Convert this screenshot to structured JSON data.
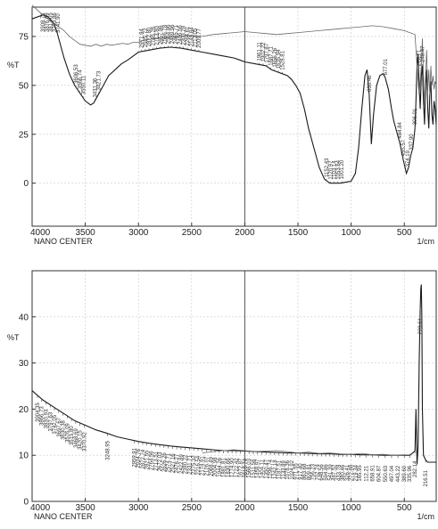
{
  "chart_data": [
    {
      "type": "line",
      "x_unit": "1/cm",
      "ylabel": "%T",
      "footer_label": "NANO CENTER",
      "xlim": [
        4000,
        200
      ],
      "ylim": [
        -22,
        90
      ],
      "x_ticks": [
        4000,
        3500,
        3000,
        2500,
        2000,
        1500,
        1000,
        500
      ],
      "y_ticks": [
        0,
        25,
        50,
        75
      ],
      "grid": true,
      "series": [
        {
          "x": [
            4000,
            3900,
            3850,
            3800,
            3770,
            3740,
            3700,
            3650,
            3600,
            3550,
            3500,
            3450,
            3420,
            3380,
            3330,
            3280,
            3220,
            3160,
            3100,
            3050,
            3000,
            2900,
            2800,
            2700,
            2600,
            2500,
            2400,
            2300,
            2200,
            2100,
            2050,
            2000,
            1900,
            1800,
            1750,
            1700,
            1650,
            1600,
            1560,
            1520,
            1480,
            1440,
            1400,
            1350,
            1300,
            1250,
            1200,
            1150,
            1100,
            1050,
            1000,
            960,
            930,
            900,
            870,
            850,
            830,
            810,
            790,
            760,
            730,
            700,
            680,
            650,
            620,
            600,
            570,
            540,
            510,
            480,
            460,
            440,
            420,
            400,
            390,
            380,
            370,
            360,
            350,
            340,
            330,
            320,
            310,
            300,
            290,
            280,
            270,
            260,
            250,
            240,
            230,
            220,
            210,
            200
          ],
          "y": [
            84,
            86,
            85,
            82,
            78,
            72,
            64,
            56,
            50,
            46,
            42,
            40,
            41,
            45,
            50,
            55,
            58,
            61,
            63,
            65,
            67,
            68,
            69,
            69.5,
            69,
            68,
            67,
            66,
            65,
            64,
            63,
            62,
            61,
            60,
            58,
            57,
            56,
            55,
            53,
            50,
            46,
            38,
            28,
            18,
            8,
            2,
            0,
            0,
            0,
            0.5,
            1,
            5,
            18,
            38,
            55,
            58,
            45,
            20,
            35,
            50,
            55,
            56,
            54,
            48,
            38,
            32,
            26,
            20,
            12,
            5,
            8,
            14,
            18,
            28,
            42,
            60,
            66,
            50,
            38,
            55,
            60,
            42,
            30,
            50,
            58,
            38,
            28,
            45,
            52,
            35,
            30,
            42,
            38,
            30
          ]
        },
        {
          "x": [
            4000,
            3900,
            3800,
            3700,
            3650,
            3600,
            3550,
            3500,
            3450,
            3400,
            3350,
            3300,
            3250,
            3200,
            3150,
            3100,
            3050,
            3000,
            2950,
            2900,
            2800,
            2700,
            2600,
            2500,
            2400,
            2300,
            2200,
            2100,
            2000,
            1900,
            1800,
            1700,
            1600,
            1500,
            1400,
            1300,
            1200,
            1100,
            1000,
            900,
            800,
            700,
            600,
            500,
            450,
            400,
            380,
            360,
            340,
            330,
            320,
            310,
            300,
            290,
            280,
            270,
            260,
            250,
            240,
            230,
            220,
            210,
            200
          ],
          "y": [
            91,
            86,
            82,
            78,
            75,
            73,
            71,
            70.5,
            70,
            71,
            70,
            71,
            70.5,
            71,
            71.5,
            71,
            72,
            72,
            73,
            73.5,
            74,
            74.5,
            75,
            75.5,
            75,
            76,
            76.5,
            77,
            77.5,
            77,
            76.5,
            76,
            76.5,
            77,
            77.5,
            78,
            78.5,
            79,
            79.5,
            80,
            80.5,
            80,
            79,
            78,
            77,
            76,
            60,
            45,
            60,
            74,
            55,
            40,
            55,
            68,
            47,
            58,
            45,
            60,
            50,
            55,
            48,
            52,
            50
          ]
        }
      ],
      "peak_labels": [
        {
          "x": 3898,
          "text": "3908.71"
        },
        {
          "x": 3862,
          "text": "3876.69"
        },
        {
          "x": 3826,
          "text": "3812.05"
        },
        {
          "x": 3790,
          "text": "3793.86"
        },
        {
          "x": 3755,
          "text": "3741.90"
        },
        {
          "x": 3588,
          "text": "3606.53"
        },
        {
          "x": 3553,
          "text": "3566.74"
        },
        {
          "x": 3518,
          "text": "3550.11"
        },
        {
          "x": 3410,
          "text": "3431.36"
        },
        {
          "x": 3374,
          "text": "3421.73"
        },
        {
          "x": 2972,
          "text": "2971.94"
        },
        {
          "x": 2936,
          "text": "2925.72"
        },
        {
          "x": 2900,
          "text": "2872.80"
        },
        {
          "x": 2864,
          "text": "2746.26"
        },
        {
          "x": 2828,
          "text": "2713.80"
        },
        {
          "x": 2792,
          "text": "2657.86"
        },
        {
          "x": 2756,
          "text": "2596.78"
        },
        {
          "x": 2720,
          "text": "2564.86"
        },
        {
          "x": 2684,
          "text": "2489.96"
        },
        {
          "x": 2648,
          "text": "2465.71"
        },
        {
          "x": 2612,
          "text": "2406.56"
        },
        {
          "x": 2576,
          "text": "2303.28"
        },
        {
          "x": 2540,
          "text": "2264.61"
        },
        {
          "x": 2504,
          "text": "2149.84"
        },
        {
          "x": 2468,
          "text": "2113.05"
        },
        {
          "x": 2432,
          "text": "2009.77"
        },
        {
          "x": 1864,
          "text": "1961.11"
        },
        {
          "x": 1828,
          "text": "1902.22"
        },
        {
          "x": 1792,
          "text": "1797.87"
        },
        {
          "x": 1756,
          "text": "1687.71"
        },
        {
          "x": 1720,
          "text": "1656.26"
        },
        {
          "x": 1684,
          "text": "1635.94"
        },
        {
          "x": 1648,
          "text": "1528.81"
        },
        {
          "x": 1232,
          "text": "1152.43"
        },
        {
          "x": 1196,
          "text": "1120.97"
        },
        {
          "x": 1160,
          "text": "1103.14"
        },
        {
          "x": 1124,
          "text": "1053.64"
        },
        {
          "x": 1088,
          "text": "1001.20"
        },
        {
          "x": 830,
          "text": "830.46"
        },
        {
          "x": 677,
          "text": "677.01"
        },
        {
          "x": 545,
          "text": "484.84"
        },
        {
          "x": 510,
          "text": "455.57"
        },
        {
          "x": 470,
          "text": "374.19"
        },
        {
          "x": 435,
          "text": "337.90"
        },
        {
          "x": 400,
          "text": "306.01"
        },
        {
          "x": 365,
          "text": "276.71"
        },
        {
          "x": 330,
          "text": "248.47"
        }
      ]
    },
    {
      "type": "line",
      "x_unit": "1/cm",
      "ylabel": "%T",
      "footer_label": "NANO CENTER",
      "xlim": [
        4000,
        200
      ],
      "ylim": [
        0,
        50
      ],
      "x_ticks": [
        4000,
        3500,
        3000,
        2500,
        2000,
        1500,
        1000,
        500
      ],
      "y_ticks": [
        0,
        10,
        20,
        30,
        40
      ],
      "grid": true,
      "series": [
        {
          "x": [
            4000,
            3900,
            3800,
            3700,
            3600,
            3500,
            3400,
            3300,
            3200,
            3100,
            3000,
            2900,
            2800,
            2700,
            2600,
            2500,
            2400,
            2300,
            2200,
            2100,
            2000,
            1900,
            1800,
            1700,
            1600,
            1500,
            1400,
            1300,
            1200,
            1100,
            1000,
            900,
            800,
            700,
            600,
            500,
            450,
            420,
            400,
            390,
            380,
            370,
            360,
            350,
            345,
            340,
            335,
            330,
            320,
            300,
            280,
            260,
            240,
            220,
            200
          ],
          "y": [
            24,
            22,
            20.5,
            19,
            17.5,
            16.5,
            15.5,
            14.8,
            14,
            13.5,
            13,
            12.6,
            12.3,
            12,
            11.8,
            11.6,
            11.4,
            11.2,
            11,
            11,
            10.9,
            10.8,
            10.7,
            10.6,
            10.5,
            10.5,
            10.4,
            10.3,
            10.3,
            10.2,
            10.2,
            10.1,
            10.1,
            10,
            10,
            10,
            10,
            10.5,
            11,
            20,
            8,
            12,
            30,
            42,
            46,
            47,
            40,
            20,
            10,
            9,
            8.5,
            8.5,
            8.5,
            8.5,
            8.5
          ]
        },
        {
          "x": [
            2400,
            2300,
            2200,
            2100,
            2000,
            1900,
            1800,
            1700,
            1600,
            1500,
            1400,
            1300,
            1200,
            1100,
            1000,
            900,
            800,
            700,
            600,
            500
          ],
          "y": [
            10.5,
            10.8,
            11,
            11.2,
            11,
            10.8,
            10.9,
            11,
            10.8,
            10.5,
            10.7,
            10.4,
            10.5,
            10.3,
            10.2,
            10.4,
            10.1,
            10.2,
            10,
            10.1
          ]
        }
      ],
      "peak_labels": [
        {
          "x": 3950,
          "text": "3904.35"
        },
        {
          "x": 3910,
          "text": "3866.73"
        },
        {
          "x": 3870,
          "text": "3830.93"
        },
        {
          "x": 3830,
          "text": "3797.63"
        },
        {
          "x": 3790,
          "text": "3742.05"
        },
        {
          "x": 3750,
          "text": "3697.67"
        },
        {
          "x": 3710,
          "text": "3630.38"
        },
        {
          "x": 3670,
          "text": "3576.09"
        },
        {
          "x": 3630,
          "text": "3515.80"
        },
        {
          "x": 3590,
          "text": "3468.69"
        },
        {
          "x": 3550,
          "text": "3420.15"
        },
        {
          "x": 3510,
          "text": "3370.92"
        },
        {
          "x": 3290,
          "text": "3248.95"
        },
        {
          "x": 3040,
          "text": "2959.91"
        },
        {
          "x": 3000,
          "text": "2924.76"
        },
        {
          "x": 2960,
          "text": "2872.74"
        },
        {
          "x": 2920,
          "text": "2821.55"
        },
        {
          "x": 2880,
          "text": "2764.56"
        },
        {
          "x": 2840,
          "text": "2713.51"
        },
        {
          "x": 2800,
          "text": "2672.03"
        },
        {
          "x": 2760,
          "text": "2626.26"
        },
        {
          "x": 2720,
          "text": "2574.71"
        },
        {
          "x": 2680,
          "text": "2527.16"
        },
        {
          "x": 2640,
          "text": "2478.27"
        },
        {
          "x": 2600,
          "text": "2422.89"
        },
        {
          "x": 2560,
          "text": "2380.22"
        },
        {
          "x": 2520,
          "text": "2331.71"
        },
        {
          "x": 2480,
          "text": "2275.32"
        },
        {
          "x": 2440,
          "text": "2216.54"
        },
        {
          "x": 2400,
          "text": "2174.91"
        },
        {
          "x": 2360,
          "text": "2126.07"
        },
        {
          "x": 2320,
          "text": "2068.49"
        },
        {
          "x": 2280,
          "text": "2004.98"
        },
        {
          "x": 2240,
          "text": "1944.26"
        },
        {
          "x": 2200,
          "text": "1881.81"
        },
        {
          "x": 2160,
          "text": "1830.66"
        },
        {
          "x": 2120,
          "text": "1774.90"
        },
        {
          "x": 2080,
          "text": "1722.42"
        },
        {
          "x": 2040,
          "text": "1672.87"
        },
        {
          "x": 2000,
          "text": "1618.74"
        },
        {
          "x": 1960,
          "text": "1566.03"
        },
        {
          "x": 1920,
          "text": "1511.58"
        },
        {
          "x": 1880,
          "text": "1458.97"
        },
        {
          "x": 1840,
          "text": "1404.11"
        },
        {
          "x": 1800,
          "text": "1350.47"
        },
        {
          "x": 1760,
          "text": "1296.74"
        },
        {
          "x": 1720,
          "text": "1242.18"
        },
        {
          "x": 1680,
          "text": "1187.51"
        },
        {
          "x": 1640,
          "text": "1133.89"
        },
        {
          "x": 1600,
          "text": "1078.36"
        },
        {
          "x": 1560,
          "text": "1024.92"
        },
        {
          "x": 1520,
          "text": "971.55"
        },
        {
          "x": 1480,
          "text": "917.40"
        },
        {
          "x": 1440,
          "text": "863.68"
        },
        {
          "x": 1400,
          "text": "809.81"
        },
        {
          "x": 1360,
          "text": "756.23"
        },
        {
          "x": 1320,
          "text": "702.74"
        },
        {
          "x": 1280,
          "text": "648.56"
        },
        {
          "x": 1240,
          "text": "594.86"
        },
        {
          "x": 1200,
          "text": "541.39"
        },
        {
          "x": 1160,
          "text": "487.52"
        },
        {
          "x": 1120,
          "text": "433.78"
        },
        {
          "x": 1080,
          "text": "380.46"
        },
        {
          "x": 1040,
          "text": "326.41"
        },
        {
          "x": 1000,
          "text": "272.88"
        },
        {
          "x": 960,
          "text": "219.34"
        },
        {
          "x": 920,
          "text": "165.95"
        },
        {
          "x": 860,
          "text": "112.21"
        },
        {
          "x": 800,
          "text": "658.91"
        },
        {
          "x": 740,
          "text": "604.87"
        },
        {
          "x": 680,
          "text": "550.63"
        },
        {
          "x": 620,
          "text": "497.04"
        },
        {
          "x": 560,
          "text": "443.22"
        },
        {
          "x": 500,
          "text": "389.60"
        },
        {
          "x": 450,
          "text": "335.96"
        },
        {
          "x": 400,
          "text": "282.14"
        },
        {
          "x": 350,
          "text": "228.61"
        },
        {
          "x": 300,
          "text": "216.51"
        }
      ]
    }
  ]
}
